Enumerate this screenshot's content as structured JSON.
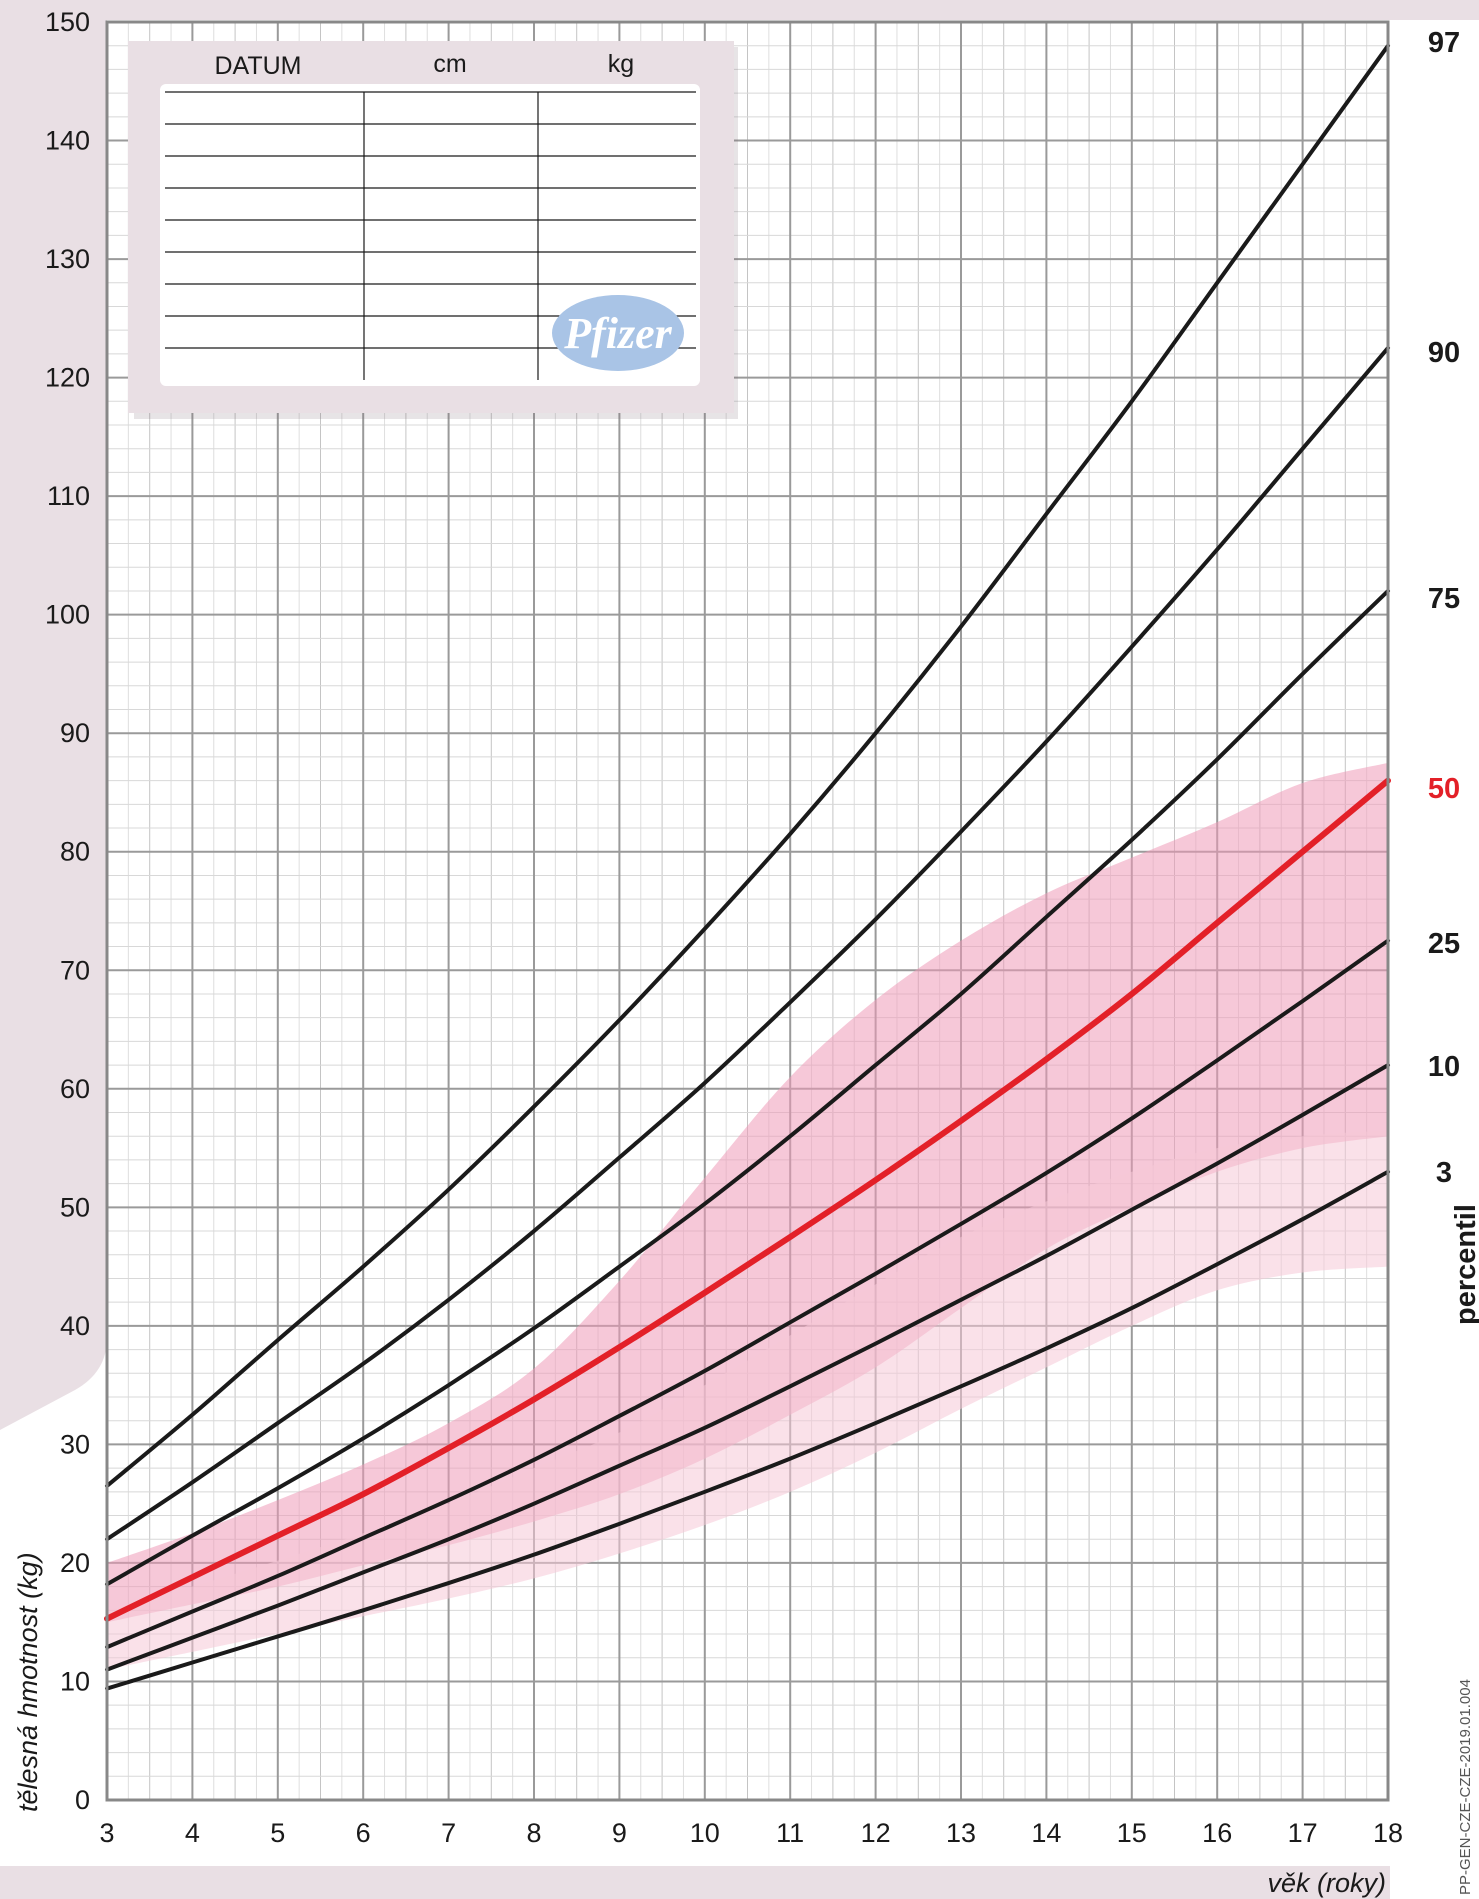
{
  "chart_data": {
    "type": "line",
    "xlabel": "věk (roky)",
    "ylabel": "tělesná hmotnost (kg)",
    "xlim": [
      3,
      18
    ],
    "ylim": [
      0,
      150
    ],
    "x_ticks": [
      "3",
      "4",
      "5",
      "6",
      "7",
      "8",
      "9",
      "10",
      "11",
      "12",
      "13",
      "14",
      "15",
      "16",
      "17",
      "18"
    ],
    "y_ticks": [
      "0",
      "10",
      "20",
      "30",
      "40",
      "50",
      "60",
      "70",
      "80",
      "90",
      "100",
      "110",
      "120",
      "130",
      "140",
      "150"
    ],
    "grid": true,
    "legend_title": "percentil",
    "x": [
      3,
      4,
      5,
      6,
      7,
      8,
      9,
      10,
      11,
      12,
      13,
      14,
      15,
      16,
      17,
      18
    ],
    "series": [
      {
        "name": "97",
        "color": "#1a1a1a",
        "values": [
          26.5,
          32.5,
          38.8,
          45,
          51.5,
          58.5,
          65.8,
          73.5,
          81.5,
          90,
          99,
          108.5,
          118,
          128,
          138,
          148
        ]
      },
      {
        "name": "90",
        "color": "#1a1a1a",
        "values": [
          22,
          26.8,
          31.8,
          36.8,
          42.2,
          48,
          54.2,
          60.5,
          67.3,
          74.3,
          81.7,
          89.3,
          97.3,
          105.5,
          114,
          122.5
        ]
      },
      {
        "name": "75",
        "color": "#1a1a1a",
        "values": [
          18.2,
          22.3,
          26.3,
          30.5,
          35,
          39.8,
          45,
          50.3,
          56,
          62,
          68,
          74.5,
          81,
          87.8,
          95,
          102
        ]
      },
      {
        "name": "50",
        "color": "#e32028",
        "values": [
          15.3,
          18.8,
          22.3,
          25.8,
          29.7,
          33.8,
          38.2,
          42.8,
          47.5,
          52.3,
          57.3,
          62.5,
          68,
          74,
          80,
          86
        ]
      },
      {
        "name": "25",
        "color": "#1a1a1a",
        "values": [
          12.9,
          15.9,
          18.9,
          22.1,
          25.3,
          28.7,
          32.4,
          36.2,
          40.3,
          44.4,
          48.6,
          52.9,
          57.5,
          62.4,
          67.4,
          72.5
        ]
      },
      {
        "name": "10",
        "color": "#1a1a1a",
        "values": [
          11,
          13.7,
          16.4,
          19.2,
          22,
          25,
          28.2,
          31.4,
          34.9,
          38.5,
          42.2,
          45.9,
          49.8,
          53.7,
          57.8,
          62
        ]
      },
      {
        "name": "3",
        "color": "#1a1a1a",
        "values": [
          9.4,
          11.6,
          13.8,
          16,
          18.3,
          20.7,
          23.3,
          26,
          28.8,
          31.8,
          34.9,
          38.1,
          41.5,
          45.2,
          49,
          53
        ]
      }
    ],
    "bands": [
      {
        "color": "#ef9bb8",
        "opacity": 0.55,
        "upper": [
          20,
          22.5,
          25.3,
          28.3,
          31.8,
          36.4,
          43.8,
          52.5,
          61,
          67.5,
          72.5,
          76.5,
          79.5,
          82.5,
          85.8,
          87.5
        ],
        "lower": [
          15,
          16.5,
          18,
          19.8,
          21.5,
          23.5,
          25.8,
          28.8,
          32.5,
          36.5,
          41.5,
          46.5,
          50,
          53,
          55,
          56
        ]
      },
      {
        "color": "#f6c8d7",
        "opacity": 0.55,
        "upper": [
          16,
          18,
          20.2,
          22.5,
          25,
          28,
          31,
          35,
          39.2,
          43.5,
          47.5,
          50.5,
          53,
          55,
          56,
          56.5
        ],
        "lower": [
          11,
          12.5,
          14,
          15.5,
          17,
          18.7,
          20.8,
          23.2,
          26,
          29.3,
          33,
          36.5,
          40,
          43,
          44.5,
          45
        ]
      }
    ]
  },
  "record_table": {
    "headers": [
      "DATUM",
      "cm",
      "kg"
    ],
    "rows": 9,
    "logo": "Pfizer"
  },
  "doc_code": "PP-GEN-CZE-CZE-2019.01.004"
}
